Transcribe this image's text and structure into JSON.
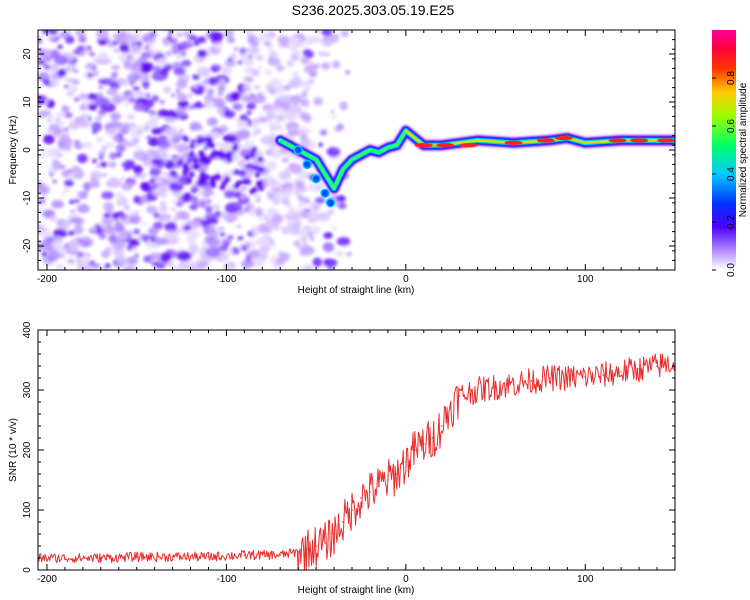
{
  "title": "S236.2025.303.05.19.E25",
  "chart_data": [
    {
      "type": "heatmap",
      "title": "",
      "xlabel": "Height of straight line (km)",
      "ylabel": "Frequency (Hz)",
      "xlim": [
        -205,
        150
      ],
      "ylim": [
        -25,
        25
      ],
      "xticks": [
        -200,
        -100,
        0,
        100
      ],
      "yticks": [
        -20,
        -10,
        0,
        10,
        20
      ],
      "colorbar": {
        "label": "Normalized spectral amplitude",
        "range": [
          0,
          1
        ],
        "ticks": [
          0.0,
          0.2,
          0.4,
          0.6,
          0.8
        ],
        "tick_labels": [
          "0.0",
          "0.2",
          "0.4",
          "0.6",
          "0.8"
        ]
      },
      "ridge": {
        "x": [
          -70,
          -60,
          -50,
          -45,
          -40,
          -35,
          -30,
          -25,
          -20,
          -15,
          -10,
          -5,
          0,
          10,
          20,
          40,
          60,
          80,
          90,
          100,
          120,
          150
        ],
        "freq": [
          2,
          0,
          -2,
          -5,
          -8,
          -4,
          -2,
          -1,
          0,
          -0.5,
          0.5,
          1,
          4,
          1,
          1,
          2,
          1.5,
          2,
          2.5,
          1.5,
          2,
          2
        ]
      }
    },
    {
      "type": "line",
      "title": "",
      "xlabel": "Height of straight line (km)",
      "ylabel": "SNR (10 * v/v)",
      "xlim": [
        -205,
        150
      ],
      "ylim": [
        0,
        400
      ],
      "xticks": [
        -200,
        -100,
        0,
        100
      ],
      "yticks": [
        0,
        100,
        200,
        300,
        400
      ],
      "series": [
        {
          "name": "SNR",
          "color": "#e82d2d",
          "x": [
            -205,
            -190,
            -170,
            -150,
            -130,
            -110,
            -90,
            -80,
            -70,
            -60,
            -55,
            -50,
            -45,
            -40,
            -35,
            -30,
            -25,
            -20,
            -15,
            -10,
            -5,
            0,
            5,
            10,
            15,
            20,
            25,
            30,
            40,
            50,
            60,
            70,
            80,
            90,
            100,
            110,
            120,
            130,
            140,
            150
          ],
          "values": [
            20,
            20,
            20,
            22,
            22,
            22,
            25,
            25,
            25,
            30,
            35,
            40,
            45,
            60,
            80,
            100,
            120,
            130,
            140,
            150,
            160,
            180,
            200,
            210,
            220,
            240,
            270,
            290,
            300,
            305,
            310,
            315,
            320,
            320,
            322,
            325,
            330,
            335,
            340,
            345
          ]
        }
      ]
    }
  ]
}
